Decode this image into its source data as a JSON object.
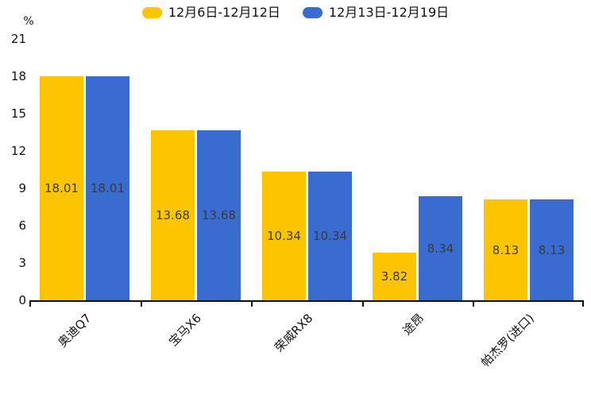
{
  "chart_data": {
    "type": "bar",
    "title": "",
    "categories": [
      "奥迪Q7",
      "宝马X6",
      "荣威RX8",
      "途昂",
      "帕杰罗(进口)"
    ],
    "series": [
      {
        "name": "12月6日-12月12日",
        "color": "#FDC400",
        "values": [
          18.01,
          13.68,
          10.34,
          3.82,
          8.13
        ]
      },
      {
        "name": "12月13日-12月19日",
        "color": "#3A6BCE",
        "values": [
          18.01,
          13.68,
          10.34,
          8.34,
          8.13
        ]
      }
    ],
    "xlabel": "",
    "ylabel": "%",
    "ylim": [
      0,
      21
    ],
    "yticks": [
      0,
      3,
      6,
      9,
      12,
      15,
      18,
      21
    ],
    "legend_position": "top",
    "grid": false,
    "value_label_position": "inside-middle",
    "category_label_rotation_deg": 45,
    "axis_color": "#111111",
    "value_label_color": "#3b3b3b"
  }
}
